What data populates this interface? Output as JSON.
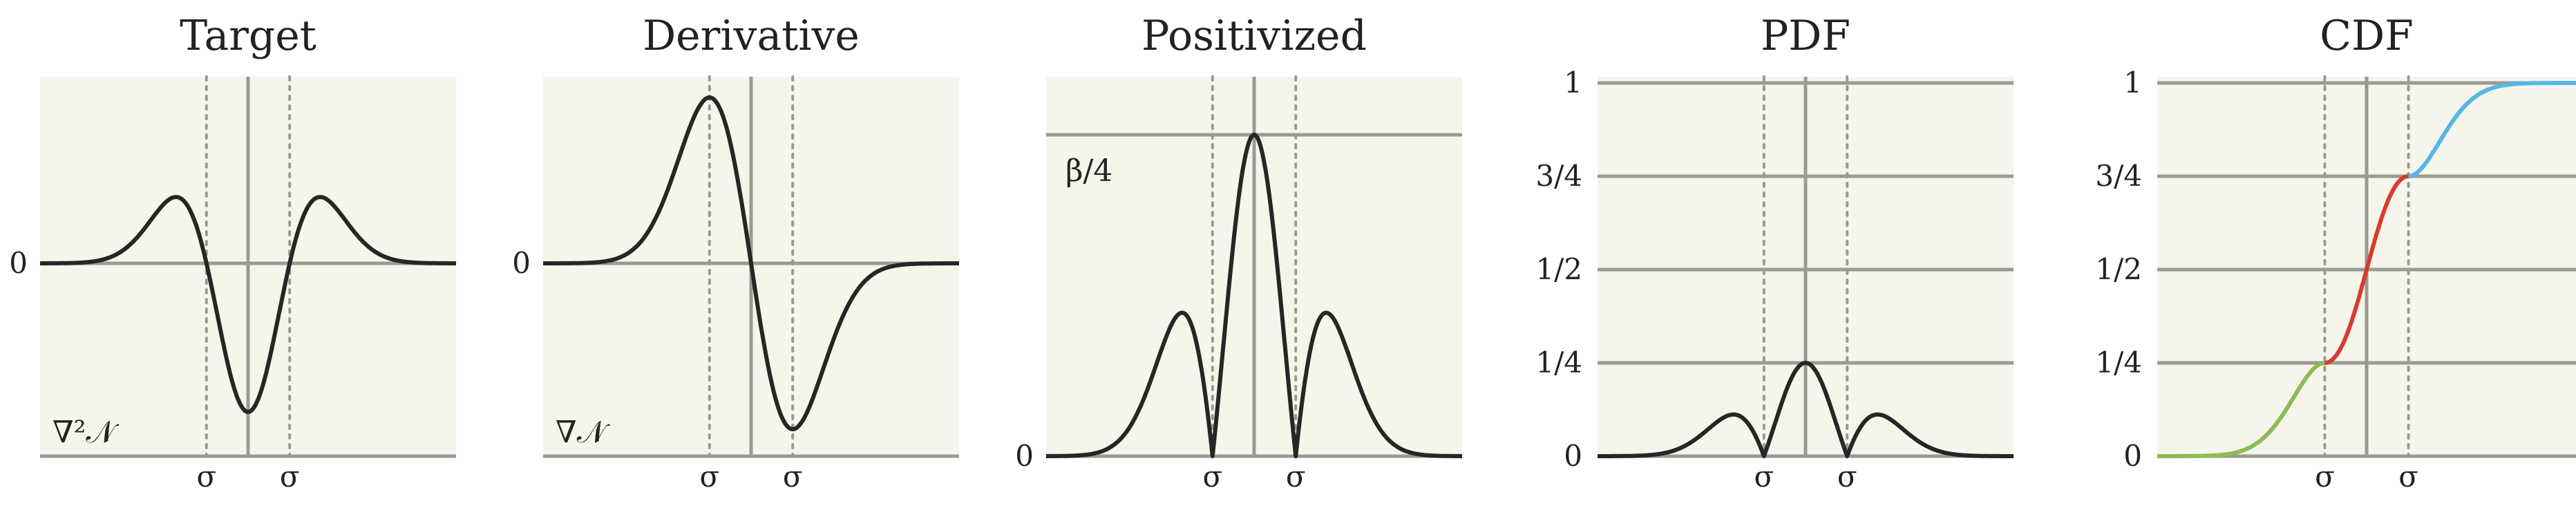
{
  "figure": {
    "colors": {
      "panel_bg": "#f5f5ec",
      "grid": "#9a9a92",
      "curve": "#262626",
      "segment_left": "#8dbb55",
      "segment_middle": "#d63c31",
      "segment_right": "#55b7e5"
    }
  },
  "chart_data": [
    {
      "type": "line",
      "title": "Target",
      "annotation": "∇²𝒩",
      "x_tick_labels": [
        "σ",
        "σ"
      ],
      "y_tick_labels": [
        "0"
      ],
      "function": "second derivative of Gaussian",
      "xlim": [
        -5,
        5
      ],
      "x_markers": [
        -1,
        1
      ],
      "series": [
        {
          "x": [
            -5,
            -4,
            -3,
            -2.5,
            -2,
            -1.73,
            -1.5,
            -1,
            -0.5,
            0,
            0.5,
            1,
            1.5,
            1.73,
            2,
            2.5,
            3,
            3.5,
            4,
            5
          ],
          "y": [
            0.0,
            0.006,
            0.089,
            0.229,
            0.406,
            0.446,
            0.407,
            0.0,
            -0.661,
            -1.0,
            -0.661,
            0.0,
            0.407,
            0.446,
            0.406,
            0.229,
            0.089,
            0.029,
            0.006,
            0.0
          ]
        }
      ]
    },
    {
      "type": "line",
      "title": "Derivative",
      "annotation": "∇𝒩",
      "x_tick_labels": [
        "σ",
        "σ"
      ],
      "y_tick_labels": [
        "0"
      ],
      "function": "first derivative of Gaussian",
      "xlim": [
        -5,
        5
      ],
      "x_markers": [
        -1,
        1
      ],
      "series": [
        {
          "x": [
            -5,
            -4,
            -3,
            -2.5,
            -2,
            -1.5,
            -1,
            -0.5,
            0,
            0.5,
            1,
            1.5,
            2,
            2.5,
            3,
            4,
            5
          ],
          "y": [
            0.0,
            0.002,
            0.055,
            0.231,
            0.502,
            0.811,
            1.0,
            0.686,
            0.0,
            -0.686,
            -1.0,
            -0.811,
            -0.502,
            -0.231,
            -0.055,
            -0.002,
            0.0
          ]
        }
      ]
    },
    {
      "type": "line",
      "title": "Positivized",
      "annotation": "β/4",
      "x_tick_labels": [
        "σ",
        "σ"
      ],
      "y_tick_labels": [
        "0"
      ],
      "function": "absolute value of second derivative of Gaussian",
      "xlim": [
        -5,
        5
      ],
      "ylim": [
        0,
        1
      ],
      "x_markers": [
        -1,
        1
      ],
      "y_markers": [
        1
      ],
      "series": [
        {
          "x": [
            -5,
            -4,
            -3,
            -2.5,
            -2,
            -1.73,
            -1.5,
            -1,
            -0.5,
            0,
            0.5,
            1,
            1.5,
            1.73,
            2,
            2.5,
            3,
            4,
            5
          ],
          "y": [
            0.0,
            0.006,
            0.089,
            0.229,
            0.406,
            0.446,
            0.407,
            0.0,
            0.661,
            1.0,
            0.661,
            0.0,
            0.407,
            0.446,
            0.406,
            0.229,
            0.089,
            0.006,
            0.0
          ]
        }
      ]
    },
    {
      "type": "line",
      "title": "PDF",
      "x_tick_labels": [
        "σ",
        "σ"
      ],
      "y_tick_labels": [
        "0",
        "1/4",
        "1/2",
        "3/4",
        "1"
      ],
      "y_ticks": [
        0,
        0.25,
        0.5,
        0.75,
        1
      ],
      "function": "normalized absolute second derivative of Gaussian",
      "xlim": [
        -5,
        5
      ],
      "ylim": [
        0,
        1
      ],
      "x_markers": [
        -1,
        1
      ],
      "series": [
        {
          "x": [
            -5,
            -4,
            -3,
            -2.5,
            -2,
            -1.73,
            -1.5,
            -1,
            -0.5,
            0,
            0.5,
            1,
            1.5,
            1.73,
            2,
            2.5,
            3,
            4,
            5
          ],
          "y": [
            0.0,
            0.0015,
            0.022,
            0.057,
            0.1015,
            0.1115,
            0.102,
            0.0,
            0.165,
            0.25,
            0.165,
            0.0,
            0.102,
            0.1115,
            0.1015,
            0.057,
            0.022,
            0.0015,
            0.0
          ]
        }
      ]
    },
    {
      "type": "line",
      "title": "CDF",
      "x_tick_labels": [
        "σ",
        "σ"
      ],
      "y_tick_labels": [
        "0",
        "1/4",
        "1/2",
        "3/4",
        "1"
      ],
      "y_ticks": [
        0,
        0.25,
        0.5,
        0.75,
        1
      ],
      "function": "cumulative distribution of the PDF",
      "xlim": [
        -5,
        5
      ],
      "ylim": [
        0,
        1
      ],
      "x_markers": [
        -1,
        1
      ],
      "series": [
        {
          "color": "#8dbb55",
          "x": [
            -5,
            -4,
            -3,
            -2.5,
            -2,
            -1.5,
            -1
          ],
          "y": [
            0.0,
            0.003,
            0.029,
            0.069,
            0.138,
            0.21,
            0.25
          ]
        },
        {
          "color": "#d63c31",
          "x": [
            -1,
            -0.5,
            0,
            0.5,
            1
          ],
          "y": [
            0.25,
            0.34,
            0.5,
            0.66,
            0.75
          ]
        },
        {
          "color": "#55b7e5",
          "x": [
            1,
            1.5,
            2,
            2.5,
            3,
            4,
            5
          ],
          "y": [
            0.75,
            0.79,
            0.862,
            0.931,
            0.971,
            0.997,
            1.0
          ]
        }
      ]
    }
  ]
}
